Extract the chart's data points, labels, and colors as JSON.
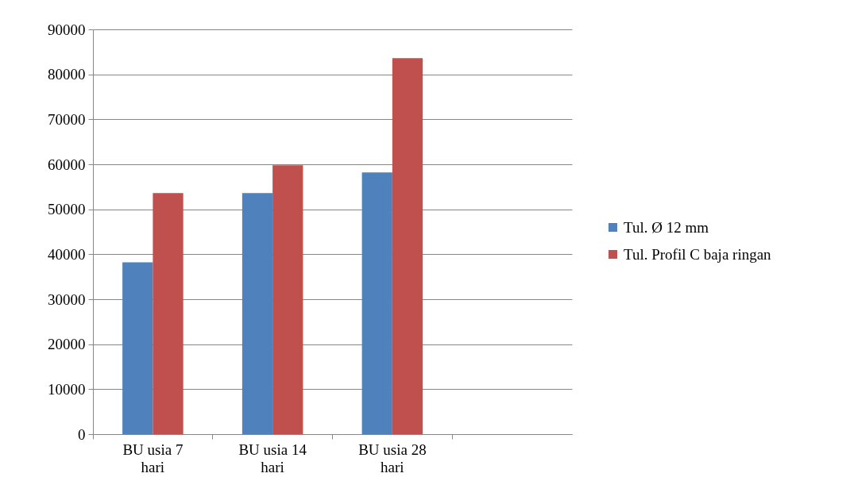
{
  "chart_data": {
    "type": "bar",
    "categories": [
      "BU usia 7 hari",
      "BU usia 14 hari",
      "BU usia 28 hari",
      null
    ],
    "series": [
      {
        "name": "Tul. Ø 12 mm",
        "color": "#4f81bd",
        "values": [
          38200,
          53600,
          58200,
          null
        ]
      },
      {
        "name": "Tul. Profil C baja ringan",
        "color": "#c0504d",
        "values": [
          53600,
          59800,
          83600,
          null
        ]
      }
    ],
    "ylim": [
      0,
      90000
    ],
    "yticks": [
      0,
      10000,
      20000,
      30000,
      40000,
      50000,
      60000,
      70000,
      80000,
      90000
    ],
    "grid": "y",
    "legend": "right"
  }
}
